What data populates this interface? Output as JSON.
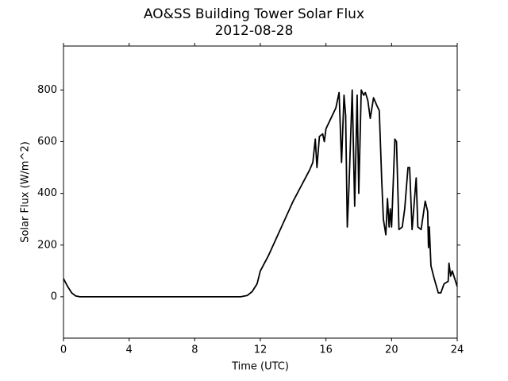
{
  "chart_data": {
    "type": "line",
    "title": "AO&SS Building Tower Solar Flux",
    "subtitle": "2012-08-28",
    "xlabel": "Time (UTC)",
    "ylabel": "Solar Flux (W/m^2)",
    "series": [
      {
        "color": "#000000",
        "x": [
          0,
          0.25,
          0.5,
          0.75,
          1,
          2,
          4,
          6,
          8,
          10,
          10.8,
          11.2,
          11.5,
          11.8,
          12,
          12.5,
          13,
          13.5,
          14,
          14.5,
          15,
          15.2,
          15.35,
          15.45,
          15.6,
          15.8,
          15.9,
          16,
          16.3,
          16.6,
          16.8,
          16.95,
          17.1,
          17.2,
          17.3,
          17.4,
          17.6,
          17.75,
          17.9,
          18.0,
          18.15,
          18.3,
          18.4,
          18.55,
          18.7,
          18.9,
          19.1,
          19.25,
          19.4,
          19.5,
          19.65,
          19.75,
          19.85,
          19.92,
          20.0,
          20.2,
          20.3,
          20.45,
          20.65,
          20.8,
          21.0,
          21.1,
          21.25,
          21.5,
          21.6,
          21.8,
          22.05,
          22.2,
          22.25,
          22.3,
          22.4,
          22.6,
          22.85,
          23.0,
          23.2,
          23.45,
          23.5,
          23.6,
          23.7,
          24
        ],
        "values": [
          70,
          40,
          15,
          3,
          0,
          0,
          0,
          0,
          0,
          0,
          0,
          5,
          20,
          50,
          100,
          160,
          230,
          300,
          370,
          430,
          490,
          520,
          610,
          500,
          620,
          630,
          600,
          650,
          690,
          730,
          790,
          520,
          780,
          700,
          270,
          420,
          800,
          350,
          780,
          400,
          800,
          780,
          790,
          760,
          690,
          770,
          740,
          720,
          450,
          300,
          240,
          380,
          270,
          340,
          270,
          610,
          600,
          260,
          270,
          340,
          500,
          500,
          260,
          460,
          270,
          260,
          370,
          330,
          190,
          270,
          120,
          70,
          15,
          15,
          50,
          60,
          130,
          80,
          100,
          40
        ]
      }
    ],
    "xlim": [
      0,
      24
    ],
    "xticks": [
      0,
      4,
      8,
      12,
      16,
      20,
      24
    ],
    "ylim": [
      -160,
      970
    ],
    "yticks": [
      0,
      200,
      400,
      600,
      800
    ],
    "grid": false
  }
}
